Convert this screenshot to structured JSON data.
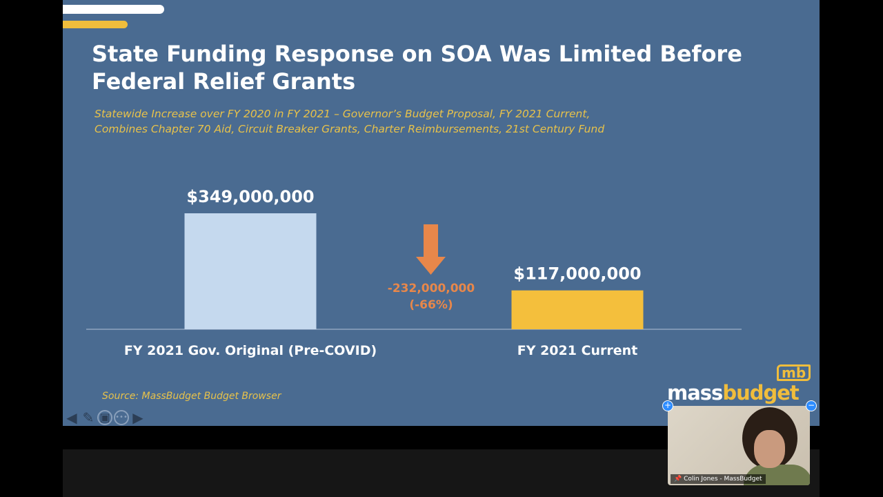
{
  "slide": {
    "title": "State Funding Response on SOA Was Limited Before Federal Relief Grants",
    "subtitle_line1": "Statewide Increase over FY 2020 in FY 2021 – Governor’s Budget Proposal, FY 2021 Current,",
    "subtitle_line2": "Combines Chapter 70 Aid, Circuit Breaker Grants, Charter Reimbursements, 21st Century Fund",
    "source": "Source: MassBudget Budget Browser",
    "logo_text_1": "mass",
    "logo_text_2": "budget",
    "logo_badge": "mb"
  },
  "chart_data": {
    "type": "bar",
    "categories": [
      "FY 2021 Gov. Original (Pre-COVID)",
      "FY 2021 Current"
    ],
    "values": [
      349000000,
      117000000
    ],
    "data_labels": [
      "$349,000,000",
      "$117,000,000"
    ],
    "colors": [
      "#c5d9ee",
      "#f4bf3c"
    ],
    "annotation": {
      "change": "-232,000,000",
      "percent": "(-66%)",
      "color": "#e8874a"
    },
    "ylim": [
      0,
      349000000
    ],
    "grid": false
  },
  "video": {
    "participant_name": "Colin Jones - MassBudget"
  },
  "nav_icons": [
    "arrow-left-icon",
    "pen-icon",
    "slides-icon",
    "more-icon",
    "arrow-right-icon"
  ]
}
